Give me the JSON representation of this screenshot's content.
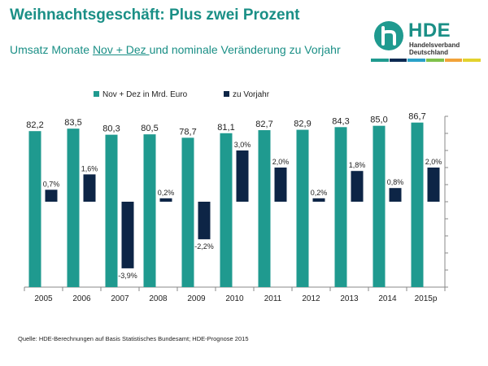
{
  "title": "Weihnachtsgeschäft: Plus zwei Prozent",
  "subtitle": {
    "prefix": "Umsatz Monate ",
    "underlined": "Nov + Dez ",
    "suffix": "und nominale Veränderung zu Vorjahr"
  },
  "logo": {
    "name": "HDE",
    "line1": "Handelsverband",
    "line2": "Deutschland",
    "icon": "hde-h-logo-icon",
    "stripe_colors": [
      "#1f9a8f",
      "#0b2a52",
      "#2aa1c8",
      "#7fc14b",
      "#f2a33a",
      "#e3d22e"
    ]
  },
  "source": "Quelle:  HDE-Berechnungen  auf Basis Statistisches Bundesamt; HDE-Prognose  2015",
  "chart_data": {
    "type": "bar",
    "categories": [
      "2005",
      "2006",
      "2007",
      "2008",
      "2009",
      "2010",
      "2011",
      "2012",
      "2013",
      "2014",
      "2015p"
    ],
    "series": [
      {
        "name": "Nov + Dez in Mrd. Euro",
        "color": "#1f9a8f",
        "values": [
          82.2,
          83.5,
          80.3,
          80.5,
          78.7,
          81.1,
          82.7,
          82.9,
          84.3,
          85.0,
          86.7
        ],
        "labels": [
          "82,2",
          "83,5",
          "80,3",
          "80,5",
          "78,7",
          "81,1",
          "82,7",
          "82,9",
          "84,3",
          "85,0",
          "86,7"
        ],
        "axis": "left"
      },
      {
        "name": "zu Vorjahr",
        "color": "#0d2546",
        "values": [
          0.7,
          1.6,
          -3.9,
          0.2,
          -2.2,
          3.0,
          2.0,
          0.2,
          1.8,
          0.8,
          2.0
        ],
        "labels": [
          "0,7%",
          "1,6%",
          "-3,9%",
          "0,2%",
          "-2,2%",
          "3,0%",
          "2,0%",
          "0,2%",
          "1,8%",
          "0,8%",
          "2,0%"
        ],
        "axis": "right"
      }
    ],
    "left_axis_range": [
      0,
      90
    ],
    "right_axis_range": [
      -5,
      5
    ],
    "grid": false,
    "legend": "top-left"
  }
}
